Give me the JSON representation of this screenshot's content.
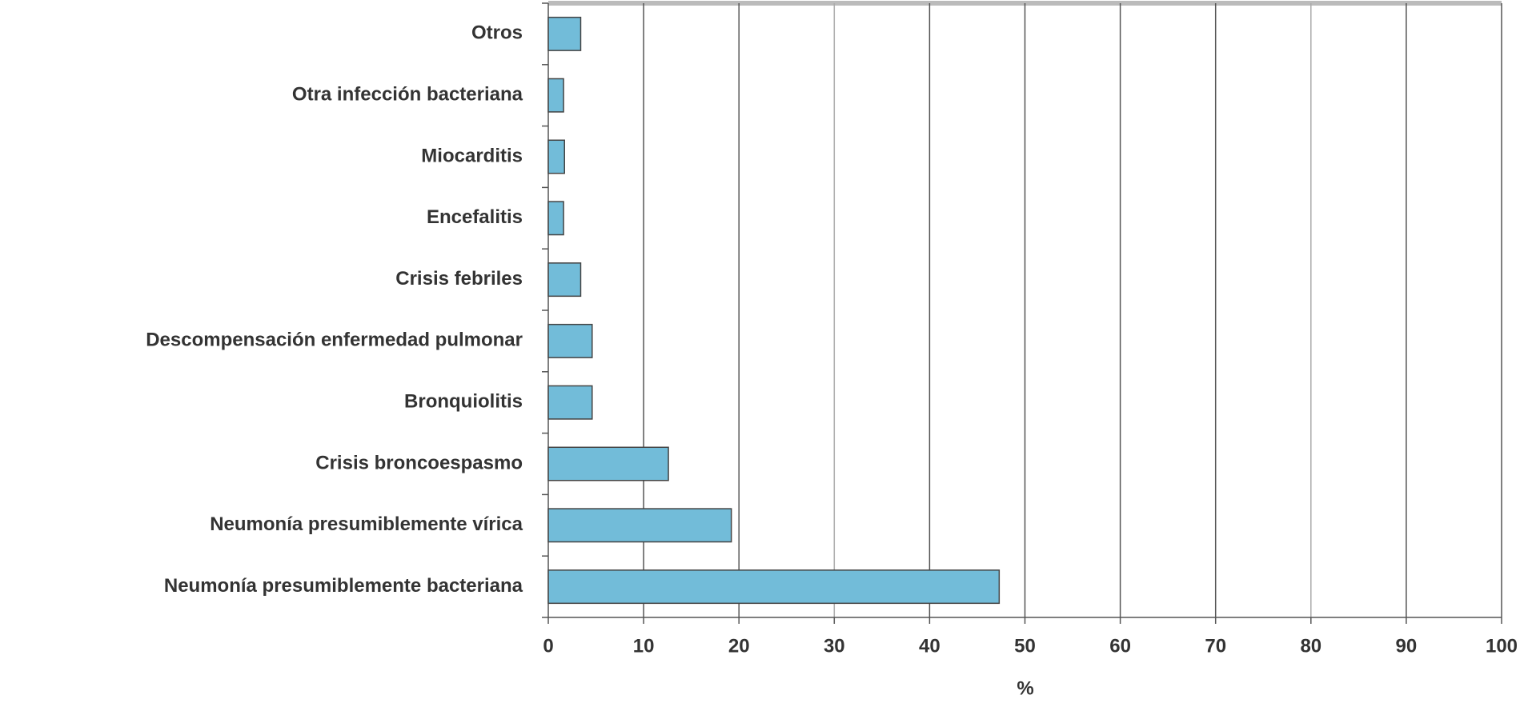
{
  "chart_data": {
    "type": "bar",
    "orientation": "horizontal",
    "categories": [
      "Otros",
      "Otra infección bacteriana",
      "Miocarditis",
      "Encefalitis",
      "Crisis febriles",
      "Descompensación enfermedad pulmonar",
      "Bronquiolitis",
      "Crisis broncoespasmo",
      "Neumonía presumiblemente vírica",
      "Neumonía presumiblemente bacteriana"
    ],
    "values": [
      3.4,
      1.6,
      1.7,
      1.6,
      3.4,
      4.6,
      4.6,
      12.6,
      19.2,
      47.3
    ],
    "color": "#72bcd9",
    "xlim": [
      0,
      100
    ],
    "xticks": [
      0,
      10,
      20,
      30,
      40,
      50,
      60,
      70,
      80,
      90,
      100
    ],
    "x_label": "%",
    "grid": true
  }
}
